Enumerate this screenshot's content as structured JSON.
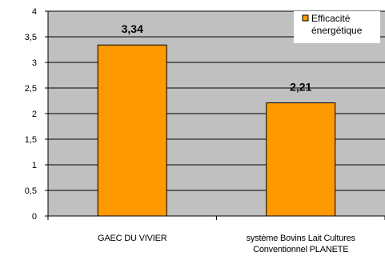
{
  "chart_data": {
    "type": "bar",
    "categories": [
      "GAEC DU VIVIER",
      "système Bovins Lait Cultures Conventionnel PLANETE"
    ],
    "category_lines": [
      [
        "GAEC DU VIVIER"
      ],
      [
        "système Bovins Lait Cultures",
        "Conventionnel PLANETE"
      ]
    ],
    "series": [
      {
        "name": "Efficacité énergétique",
        "values": [
          3.34,
          2.21
        ],
        "color": "#FF9900"
      }
    ],
    "data_labels": [
      "3,34",
      "2,21"
    ],
    "legend_lines": [
      "Efficacité",
      "énergétique"
    ],
    "yticks": [
      0,
      0.5,
      1,
      1.5,
      2,
      2.5,
      3,
      3.5,
      4
    ],
    "ytick_labels": [
      "0",
      "0,5",
      "1",
      "1,5",
      "2",
      "2,5",
      "3",
      "3,5",
      "4"
    ],
    "ylim": [
      0,
      4
    ],
    "grid": true,
    "legend_position": "top-right",
    "plot_background": "#C0C0C0",
    "bar_border": "#000000"
  }
}
